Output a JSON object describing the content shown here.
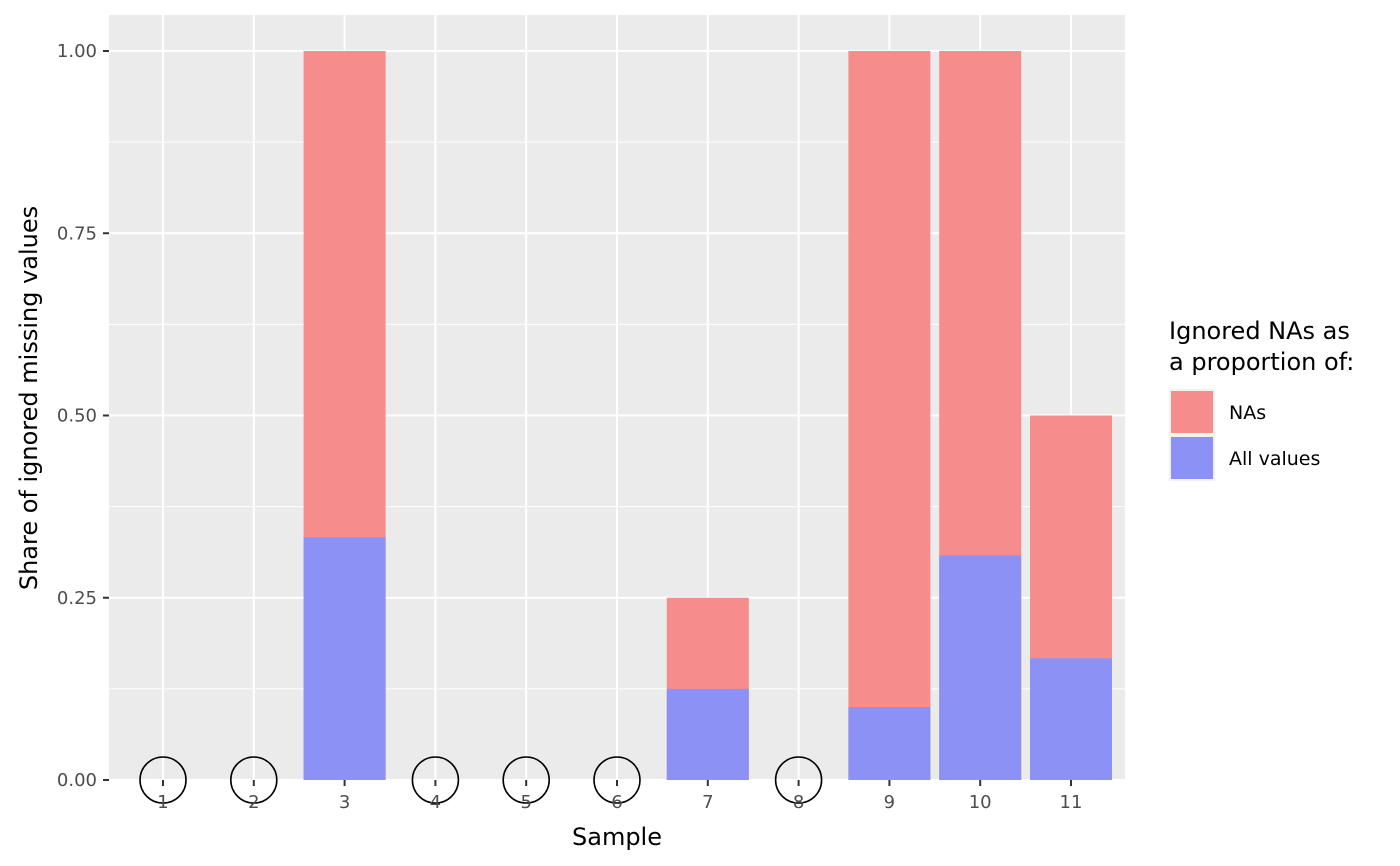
{
  "chart_data": {
    "type": "bar",
    "stacking": "overlay",
    "categories": [
      "1",
      "2",
      "3",
      "4",
      "5",
      "6",
      "7",
      "8",
      "9",
      "10",
      "11"
    ],
    "series": [
      {
        "name": "NAs",
        "color": "#f68c8b",
        "values": [
          0,
          0,
          1.0,
          0,
          0,
          0,
          0.25,
          0,
          1.0,
          1.0,
          0.5
        ]
      },
      {
        "name": "All values",
        "color": "#8c91f5",
        "values": [
          0,
          0,
          0.333,
          0,
          0,
          0,
          0.125,
          0,
          0.1,
          0.308,
          0.167
        ]
      }
    ],
    "zero_markers": {
      "shape": "open-circle",
      "categories": [
        "1",
        "2",
        "4",
        "5",
        "6",
        "8"
      ]
    },
    "xlabel": "Sample",
    "ylabel": "Share of ignored missing values",
    "ylim": [
      -0.05,
      1.05
    ],
    "yticks": [
      0.0,
      0.25,
      0.5,
      0.75,
      1.0
    ],
    "ytick_labels": [
      "0.00",
      "0.25",
      "0.50",
      "0.75",
      "1.00"
    ],
    "grid": true,
    "panel_color": "#ebebeb",
    "legend": {
      "title_lines": [
        "Ignored NAs as",
        "a proportion of:"
      ],
      "placement": "right"
    }
  }
}
